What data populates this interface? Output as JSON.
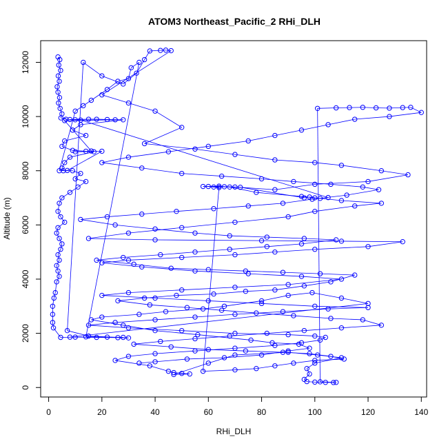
{
  "chart_data": {
    "type": "scatter",
    "title": "ATOM3 Northeast_Pacific_2 RHi_DLH",
    "xlabel": "RHi_DLH",
    "ylabel": "Altitude (m)",
    "xlim": [
      -3,
      142
    ],
    "ylim": [
      -350,
      12800
    ],
    "xticks": [
      "0",
      "20",
      "40",
      "60",
      "80",
      "100",
      "120",
      "140"
    ],
    "yticks": [
      "0",
      "2000",
      "4000",
      "6000",
      "8000",
      "10000",
      "12000"
    ],
    "grid": false,
    "legend": "none",
    "series": [
      {
        "style": "points-and-lines",
        "color": "#0000ff",
        "points": [
          [
            3.5,
            12200
          ],
          [
            4.2,
            12100
          ],
          [
            3.8,
            11900
          ],
          [
            4.5,
            11700
          ],
          [
            3.6,
            11500
          ],
          [
            4.0,
            11300
          ],
          [
            3.2,
            11100
          ],
          [
            3.5,
            10900
          ],
          [
            4.1,
            10700
          ],
          [
            3.7,
            10500
          ],
          [
            4.3,
            10300
          ],
          [
            5.0,
            10100
          ],
          [
            4.6,
            9950
          ],
          [
            6.5,
            9900
          ],
          [
            10,
            9880
          ],
          [
            15,
            9900
          ],
          [
            22,
            9890
          ],
          [
            28,
            9880
          ],
          [
            12,
            9700
          ],
          [
            9,
            9500
          ],
          [
            14,
            9300
          ],
          [
            6,
            9100
          ],
          [
            5,
            8900
          ],
          [
            9,
            8750
          ],
          [
            14,
            8720
          ],
          [
            17,
            8700
          ],
          [
            8,
            8500
          ],
          [
            6,
            8300
          ],
          [
            5,
            8100
          ],
          [
            5.5,
            8000
          ],
          [
            9,
            8000
          ],
          [
            12,
            7900
          ],
          [
            10,
            7700
          ],
          [
            14,
            7600
          ],
          [
            11,
            7400
          ],
          [
            8,
            7200
          ],
          [
            5,
            7000
          ],
          [
            4,
            6800
          ],
          [
            3.5,
            6500
          ],
          [
            4.5,
            6300
          ],
          [
            6,
            6100
          ],
          [
            3.5,
            5900
          ],
          [
            3,
            5700
          ],
          [
            4,
            5500
          ],
          [
            5,
            5300
          ],
          [
            4.5,
            5100
          ],
          [
            3.5,
            4900
          ],
          [
            4,
            4700
          ],
          [
            3,
            4500
          ],
          [
            3.5,
            4300
          ],
          [
            4,
            4100
          ],
          [
            3,
            3900
          ],
          [
            2.5,
            3500
          ],
          [
            2,
            3300
          ],
          [
            1.5,
            3000
          ],
          [
            1.5,
            2700
          ],
          [
            1.5,
            2400
          ],
          [
            1.8,
            2200
          ],
          [
            4.5,
            1850
          ],
          [
            10,
            1860
          ],
          [
            18,
            1850
          ],
          [
            26,
            1840
          ],
          [
            30,
            1830
          ],
          [
            15,
            1900
          ],
          [
            7,
            2100
          ],
          [
            13,
            12000
          ],
          [
            20,
            11500
          ],
          [
            28,
            11200
          ],
          [
            33,
            11600
          ],
          [
            36,
            12100
          ],
          [
            38,
            12420
          ],
          [
            42,
            12440
          ],
          [
            44,
            12450
          ],
          [
            46,
            12430
          ],
          [
            20,
            10800
          ],
          [
            30,
            10500
          ],
          [
            40,
            10200
          ],
          [
            50,
            9600
          ],
          [
            36,
            9000
          ],
          [
            55,
            8800
          ],
          [
            70,
            8600
          ],
          [
            85,
            8400
          ],
          [
            100,
            8300
          ],
          [
            110,
            8200
          ],
          [
            125,
            8000
          ],
          [
            135,
            7850
          ],
          [
            120,
            7600
          ],
          [
            100,
            7500
          ],
          [
            85,
            7300
          ],
          [
            70,
            7400
          ],
          [
            58,
            7420
          ],
          [
            64,
            7430
          ],
          [
            68,
            7400
          ],
          [
            78,
            7200
          ],
          [
            95,
            7050
          ],
          [
            100,
            7000
          ],
          [
            110,
            6900
          ],
          [
            125,
            6800
          ],
          [
            115,
            6700
          ],
          [
            100,
            6500
          ],
          [
            90,
            6300
          ],
          [
            70,
            6100
          ],
          [
            50,
            5900
          ],
          [
            30,
            5700
          ],
          [
            15,
            5500
          ],
          [
            40,
            5450
          ],
          [
            80,
            5420
          ],
          [
            110,
            5400
          ],
          [
            133,
            5380
          ],
          [
            120,
            5200
          ],
          [
            100,
            5100
          ],
          [
            85,
            5000
          ],
          [
            70,
            4900
          ],
          [
            50,
            4800
          ],
          [
            30,
            4700
          ],
          [
            20,
            4600
          ],
          [
            35,
            4450
          ],
          [
            55,
            4300
          ],
          [
            75,
            4200
          ],
          [
            95,
            4100
          ],
          [
            110,
            4000
          ],
          [
            90,
            3800
          ],
          [
            70,
            3700
          ],
          [
            50,
            3600
          ],
          [
            30,
            3500
          ],
          [
            20,
            3400
          ],
          [
            40,
            3300
          ],
          [
            60,
            3200
          ],
          [
            80,
            3100
          ],
          [
            100,
            3000
          ],
          [
            120,
            2950
          ],
          [
            105,
            2900
          ],
          [
            88,
            2800
          ],
          [
            70,
            2700
          ],
          [
            55,
            2600
          ],
          [
            40,
            2500
          ],
          [
            25,
            2400
          ],
          [
            15,
            2300
          ],
          [
            30,
            2200
          ],
          [
            50,
            2100
          ],
          [
            70,
            2000
          ],
          [
            90,
            1950
          ],
          [
            100,
            1900
          ],
          [
            104,
            1850
          ],
          [
            102,
            1750
          ],
          [
            95,
            1650
          ],
          [
            85,
            1550
          ],
          [
            70,
            1450
          ],
          [
            55,
            1350
          ],
          [
            40,
            1250
          ],
          [
            30,
            1150
          ],
          [
            25,
            1000
          ],
          [
            38,
            800
          ],
          [
            45,
            600
          ],
          [
            47,
            550
          ],
          [
            50,
            520
          ],
          [
            53,
            500
          ],
          [
            47,
            480
          ],
          [
            60,
            900
          ],
          [
            70,
            1200
          ],
          [
            90,
            1300
          ],
          [
            101,
            1200
          ],
          [
            110,
            1100
          ],
          [
            100,
            900
          ],
          [
            97,
            700
          ],
          [
            98,
            500
          ],
          [
            96,
            300
          ],
          [
            97,
            220
          ],
          [
            100,
            200
          ],
          [
            104,
            190
          ],
          [
            107,
            185
          ],
          [
            108,
            190
          ],
          [
            102,
            210
          ],
          [
            101,
            10300
          ],
          [
            108,
            10320
          ],
          [
            113,
            10330
          ],
          [
            118,
            10340
          ],
          [
            123,
            10320
          ],
          [
            128,
            10310
          ],
          [
            133,
            10330
          ],
          [
            136,
            10340
          ],
          [
            140,
            10150
          ],
          [
            128,
            10000
          ],
          [
            115,
            9900
          ],
          [
            105,
            9700
          ],
          [
            95,
            9500
          ],
          [
            85,
            9300
          ],
          [
            75,
            9100
          ],
          [
            60,
            8900
          ],
          [
            45,
            8700
          ],
          [
            30,
            8500
          ],
          [
            20,
            8300
          ],
          [
            35,
            8100
          ],
          [
            50,
            7900
          ],
          [
            65,
            7800
          ],
          [
            80,
            7700
          ],
          [
            92,
            7600
          ],
          [
            106,
            7500
          ],
          [
            118,
            7400
          ],
          [
            124,
            7300
          ],
          [
            112,
            7100
          ],
          [
            99,
            6950
          ],
          [
            88,
            6800
          ],
          [
            75,
            6700
          ],
          [
            62,
            6600
          ],
          [
            48,
            6500
          ],
          [
            35,
            6400
          ],
          [
            22,
            6300
          ],
          [
            12,
            6200
          ],
          [
            25,
            6000
          ],
          [
            40,
            5850
          ],
          [
            55,
            5700
          ],
          [
            68,
            5600
          ],
          [
            82,
            5550
          ],
          [
            96,
            5500
          ],
          [
            108,
            5450
          ],
          [
            95,
            5300
          ],
          [
            82,
            5200
          ],
          [
            68,
            5100
          ],
          [
            55,
            5000
          ],
          [
            42,
            4900
          ],
          [
            28,
            4800
          ],
          [
            18,
            4700
          ],
          [
            32,
            4550
          ],
          [
            46,
            4400
          ],
          [
            60,
            4350
          ],
          [
            74,
            4300
          ],
          [
            88,
            4250
          ],
          [
            102,
            4200
          ],
          [
            115,
            4150
          ],
          [
            106,
            3900
          ],
          [
            96,
            3750
          ],
          [
            85,
            3600
          ],
          [
            74,
            3550
          ],
          [
            62,
            3450
          ],
          [
            48,
            3400
          ],
          [
            36,
            3300
          ],
          [
            26,
            3200
          ],
          [
            38,
            3050
          ],
          [
            52,
            2950
          ],
          [
            65,
            2850
          ],
          [
            78,
            2750
          ],
          [
            92,
            2650
          ],
          [
            106,
            2550
          ],
          [
            118,
            2500
          ],
          [
            125,
            2300
          ],
          [
            110,
            2200
          ],
          [
            96,
            2100
          ],
          [
            82,
            2000
          ],
          [
            68,
            1900
          ],
          [
            55,
            1800
          ],
          [
            42,
            1700
          ],
          [
            32,
            1600
          ],
          [
            46,
            1500
          ],
          [
            60,
            1400
          ],
          [
            74,
            1350
          ],
          [
            88,
            1300
          ],
          [
            98,
            1250
          ],
          [
            106,
            1150
          ],
          [
            111,
            1050
          ],
          [
            100,
            1000
          ],
          [
            92,
            900
          ],
          [
            85,
            800
          ],
          [
            78,
            700
          ],
          [
            70,
            650
          ],
          [
            58,
            600
          ],
          [
            64,
            7380
          ],
          [
            60,
            7420
          ],
          [
            62,
            7400
          ],
          [
            66,
            7410
          ],
          [
            72,
            7390
          ],
          [
            96,
            7000
          ],
          [
            98,
            7030
          ],
          [
            102,
            6980
          ],
          [
            105,
            7010
          ],
          [
            12,
            9870
          ],
          [
            8,
            9890
          ],
          [
            18,
            9900
          ],
          [
            25,
            9880
          ],
          [
            6,
            9850
          ],
          [
            16,
            8730
          ],
          [
            10,
            8700
          ],
          [
            20,
            8720
          ],
          [
            7,
            8010
          ],
          [
            4,
            8000
          ],
          [
            10,
            10200
          ],
          [
            13,
            10400
          ],
          [
            16,
            10600
          ],
          [
            22,
            11000
          ],
          [
            26,
            11300
          ],
          [
            30,
            11400
          ],
          [
            31,
            11800
          ],
          [
            34,
            12000
          ],
          [
            14,
            1870
          ],
          [
            22,
            1860
          ],
          [
            28,
            1850
          ],
          [
            8,
            1860
          ],
          [
            120,
            3100
          ],
          [
            110,
            3300
          ],
          [
            99,
            3500
          ],
          [
            90,
            3400
          ],
          [
            80,
            3200
          ],
          [
            66,
            3000
          ],
          [
            58,
            2900
          ],
          [
            44,
            2800
          ],
          [
            34,
            2700
          ],
          [
            20,
            2600
          ],
          [
            16,
            2500
          ],
          [
            28,
            2300
          ],
          [
            40,
            2100
          ],
          [
            56,
            1950
          ],
          [
            76,
            1750
          ],
          [
            84,
            1650
          ],
          [
            94,
            1600
          ],
          [
            98,
            1450
          ],
          [
            90,
            1350
          ],
          [
            80,
            1200
          ],
          [
            66,
            1100
          ],
          [
            52,
            1050
          ],
          [
            40,
            950
          ],
          [
            34,
            900
          ]
        ]
      }
    ]
  }
}
